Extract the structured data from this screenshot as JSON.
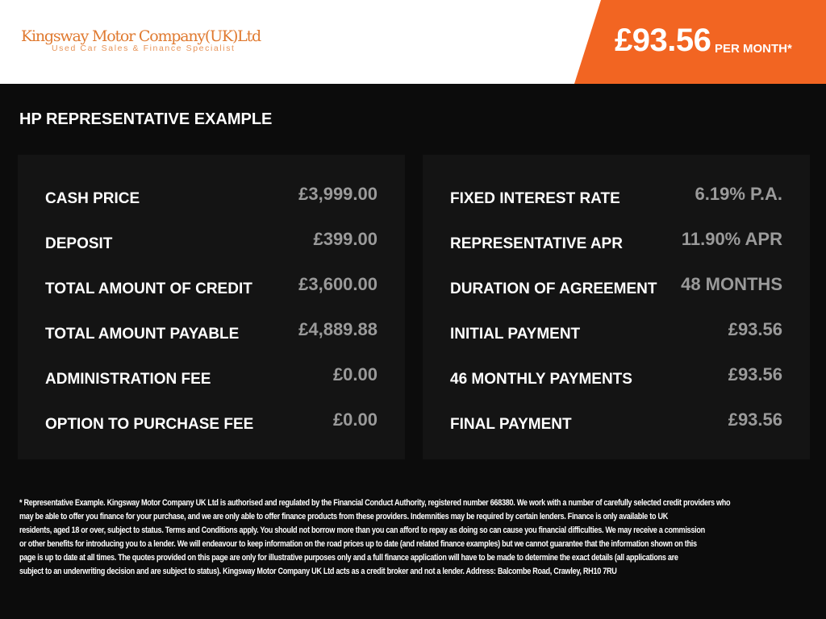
{
  "brand": {
    "name": "Kingsway Motor Company(UK)Ltd",
    "tagline": "Used Car Sales & Finance Specialist",
    "accent": "#f26522"
  },
  "banner": {
    "price": "£93.56",
    "suffix": "PER MONTH*"
  },
  "title": "HP REPRESENTATIVE EXAMPLE",
  "left": [
    {
      "label": "CASH PRICE",
      "value": "£3,999.00"
    },
    {
      "label": "DEPOSIT",
      "value": "£399.00"
    },
    {
      "label": "TOTAL AMOUNT OF CREDIT",
      "value": "£3,600.00"
    },
    {
      "label": "TOTAL AMOUNT PAYABLE",
      "value": "£4,889.88"
    },
    {
      "label": "ADMINISTRATION FEE",
      "value": "£0.00"
    },
    {
      "label": "OPTION TO PURCHASE FEE",
      "value": "£0.00"
    }
  ],
  "right": [
    {
      "label": "FIXED INTEREST RATE",
      "value": "6.19% P.A."
    },
    {
      "label": "REPRESENTATIVE APR",
      "value": "11.90% APR"
    },
    {
      "label": "DURATION OF AGREEMENT",
      "value": "48 MONTHS"
    },
    {
      "label": "INITIAL PAYMENT",
      "value": "£93.56"
    },
    {
      "label": "46 MONTHLY PAYMENTS",
      "value": "£93.56"
    },
    {
      "label": "FINAL PAYMENT",
      "value": "£93.56"
    }
  ],
  "disclaimer": [
    "* Representative Example. Kingsway Motor Company UK Ltd is authorised and regulated by the Financial Conduct Authority, registered number 668380. We work with a number of carefully selected credit providers who",
    "may be able to offer you finance for your purchase, and we are only able to offer finance products from these providers. Indemnities may be required by certain lenders. Finance is only available to UK",
    "residents, aged 18 or over, subject to status. Terms and Conditions apply. You should not borrow more than you can afford to repay as doing so can cause you financial difficulties. We may receive a commission",
    "or other benefits for introducing you to a lender. We will endeavour to keep information on the road prices up to date (and related finance examples) but we cannot guarantee that the information shown on this",
    "page is up to date at all times. The quotes provided on this page are only for illustrative purposes only and a full finance application will have to be made to determine the exact details (all applications are",
    "subject to an underwriting decision and are subject to status). Kingsway Motor Company UK Ltd acts as a credit broker and not a lender. Address: Balcombe Road, Crawley, RH10 7RU"
  ]
}
